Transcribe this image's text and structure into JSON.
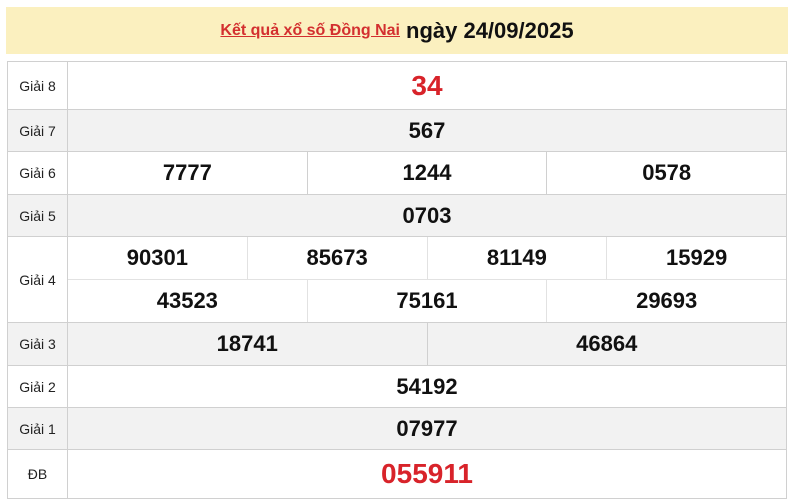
{
  "header": {
    "link": "Kết quả xổ số Đồng Nai",
    "date": "ngày 24/09/2025"
  },
  "prizes": {
    "g8": {
      "label": "Giải 8",
      "values": [
        "34"
      ]
    },
    "g7": {
      "label": "Giải 7",
      "values": [
        "567"
      ]
    },
    "g6": {
      "label": "Giải 6",
      "values": [
        "7777",
        "1244",
        "0578"
      ]
    },
    "g5": {
      "label": "Giải 5",
      "values": [
        "0703"
      ]
    },
    "g4": {
      "label": "Giải 4",
      "values": [
        "90301",
        "85673",
        "81149",
        "15929",
        "43523",
        "75161",
        "29693"
      ]
    },
    "g3": {
      "label": "Giải 3",
      "values": [
        "18741",
        "46864"
      ]
    },
    "g2": {
      "label": "Giải 2",
      "values": [
        "54192"
      ]
    },
    "g1": {
      "label": "Giải 1",
      "values": [
        "07977"
      ]
    },
    "db": {
      "label": "ĐB",
      "values": [
        "055911"
      ]
    }
  },
  "colors": {
    "accent": "#d8232a",
    "header_bg": "#fbf0bf",
    "alt_row": "#f2f2f2"
  }
}
